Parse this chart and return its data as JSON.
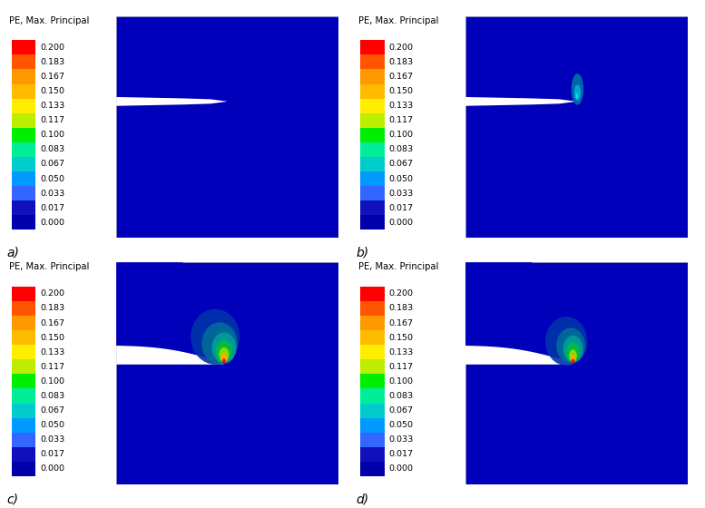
{
  "title": "PE, Max. Principal",
  "colorbar_values": [
    "0.200",
    "0.183",
    "0.167",
    "0.150",
    "0.133",
    "0.117",
    "0.100",
    "0.083",
    "0.067",
    "0.050",
    "0.033",
    "0.017",
    "0.000"
  ],
  "colorbar_colors_top_to_bottom": [
    "#FF0000",
    "#FF5500",
    "#FF9900",
    "#FFBB00",
    "#FFEE00",
    "#BBEE00",
    "#00EE00",
    "#00EE99",
    "#00CCCC",
    "#0099FF",
    "#3366FF",
    "#1111BB",
    "#0000AA"
  ],
  "bg_blue": "#0000BB",
  "bg_blue_dark": "#0000AA",
  "white": "#FFFFFF",
  "panel_labels": [
    "a)",
    "b)",
    "c)",
    "d)"
  ],
  "figure_width": 7.77,
  "figure_height": 5.6,
  "dpi": 100
}
